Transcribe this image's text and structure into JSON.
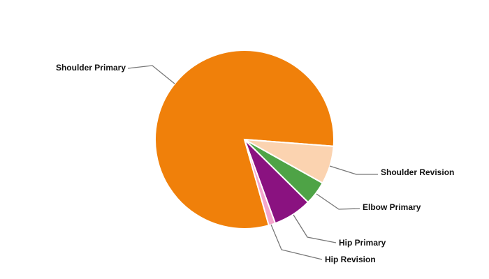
{
  "chart_data": {
    "type": "pie",
    "categories": [
      "Shoulder Primary",
      "Shoulder Revision",
      "Elbow Primary",
      "Hip Primary",
      "Hip Revision"
    ],
    "values": [
      80.6,
      6.9,
      4.3,
      7.0,
      1.2
    ],
    "colors": [
      "#f0800a",
      "#fbd3b0",
      "#4ea346",
      "#8a1280",
      "#f4a6cc"
    ]
  }
}
